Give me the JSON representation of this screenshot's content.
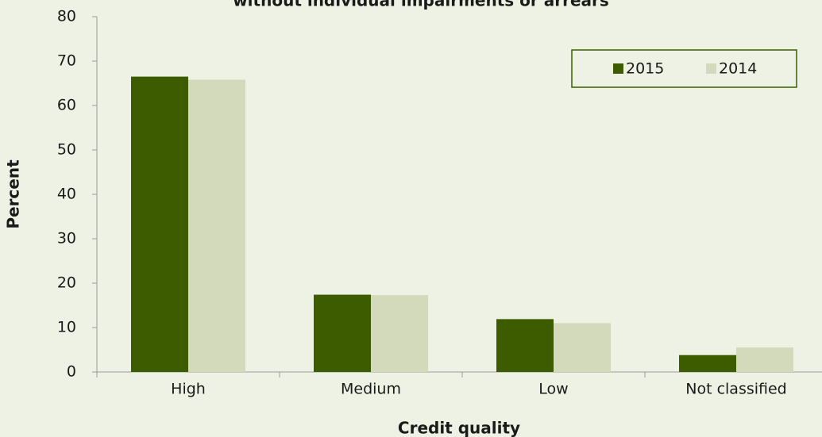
{
  "chart_data": {
    "type": "bar",
    "title": "without individual impairments or arrears",
    "x_label": "Credit quality",
    "y_label": "Percent",
    "categories": [
      "High",
      "Medium",
      "Low",
      "Not classified"
    ],
    "series": [
      {
        "name": "2015",
        "color": "#3d5c00",
        "values": [
          66.5,
          17.4,
          11.9,
          3.8
        ]
      },
      {
        "name": "2014",
        "color": "#d3dabc",
        "values": [
          65.8,
          17.3,
          11.0,
          5.5
        ]
      }
    ],
    "ylim": [
      0,
      80
    ],
    "yticks": [
      0,
      10,
      20,
      30,
      40,
      50,
      60,
      70,
      80
    ],
    "grid": false,
    "legend": "upper right"
  }
}
